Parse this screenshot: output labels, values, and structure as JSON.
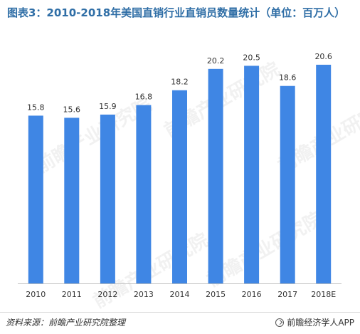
{
  "chart_data": {
    "type": "bar",
    "title": "图表3：2010-2018年美国直销行业直销员数量统计（单位：百万人）",
    "categories": [
      "2010",
      "2011",
      "2012",
      "2013",
      "2014",
      "2015",
      "2016",
      "2017",
      "2018E"
    ],
    "values": [
      15.8,
      15.6,
      15.9,
      16.8,
      18.2,
      20.2,
      20.5,
      18.6,
      20.6
    ],
    "value_labels": [
      "15.8",
      "15.6",
      "15.9",
      "16.8",
      "18.2",
      "20.2",
      "20.5",
      "18.6",
      "20.6"
    ],
    "ylim": [
      0,
      22
    ],
    "grid": false,
    "bar_color": "#3f86e4",
    "xlabel": "",
    "ylabel": ""
  },
  "footer": {
    "source": "资料来源：前瞻产业研究院整理",
    "brand": "前瞻经济学人APP"
  },
  "watermark": {
    "text": "前瞻产业研究院"
  },
  "colors": {
    "title": "#2f6ea6",
    "bar": "#3f86e4",
    "axis": "#bfbfbf"
  }
}
